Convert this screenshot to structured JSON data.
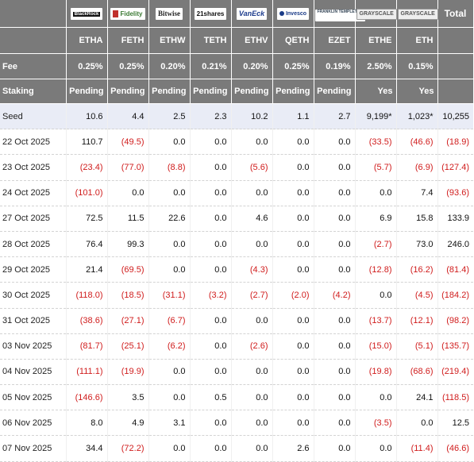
{
  "logos": [
    {
      "name": "BlackRock",
      "style": "blk"
    },
    {
      "name": "Fidelity",
      "style": "fid"
    },
    {
      "name": "Bitwise",
      "style": "btw"
    },
    {
      "name": "21shares",
      "style": "s21"
    },
    {
      "name": "VanEck",
      "style": "vek"
    },
    {
      "name": "Invesco",
      "style": "inv"
    },
    {
      "name": "FRANKLIN TEMPLETON",
      "style": "frk"
    },
    {
      "name": "GRAYSCALE",
      "style": "gs"
    },
    {
      "name": "GRAYSCALE",
      "style": "gs"
    }
  ],
  "total_label": "Total",
  "tickers": [
    "ETHA",
    "FETH",
    "ETHW",
    "TETH",
    "ETHV",
    "QETH",
    "EZET",
    "ETHE",
    "ETH"
  ],
  "fee_label": "Fee",
  "fees": [
    "0.25%",
    "0.25%",
    "0.20%",
    "0.21%",
    "0.20%",
    "0.25%",
    "0.19%",
    "2.50%",
    "0.15%"
  ],
  "staking_label": "Staking",
  "staking": [
    "Pending",
    "Pending",
    "Pending",
    "Pending",
    "Pending",
    "Pending",
    "Pending",
    "Yes",
    "Yes"
  ],
  "rows": [
    {
      "label": "Seed",
      "cells": [
        "10.6",
        "4.4",
        "2.5",
        "2.3",
        "10.2",
        "1.1",
        "2.7",
        "9,199*",
        "1,023*",
        "10,255"
      ]
    },
    {
      "label": "22 Oct 2025",
      "cells": [
        "110.7",
        "(49.5)",
        "0.0",
        "0.0",
        "0.0",
        "0.0",
        "0.0",
        "(33.5)",
        "(46.6)",
        "(18.9)"
      ]
    },
    {
      "label": "23 Oct 2025",
      "cells": [
        "(23.4)",
        "(77.0)",
        "(8.8)",
        "0.0",
        "(5.6)",
        "0.0",
        "0.0",
        "(5.7)",
        "(6.9)",
        "(127.4)"
      ]
    },
    {
      "label": "24 Oct 2025",
      "cells": [
        "(101.0)",
        "0.0",
        "0.0",
        "0.0",
        "0.0",
        "0.0",
        "0.0",
        "0.0",
        "7.4",
        "(93.6)"
      ]
    },
    {
      "label": "27 Oct 2025",
      "cells": [
        "72.5",
        "11.5",
        "22.6",
        "0.0",
        "4.6",
        "0.0",
        "0.0",
        "6.9",
        "15.8",
        "133.9"
      ]
    },
    {
      "label": "28 Oct 2025",
      "cells": [
        "76.4",
        "99.3",
        "0.0",
        "0.0",
        "0.0",
        "0.0",
        "0.0",
        "(2.7)",
        "73.0",
        "246.0"
      ]
    },
    {
      "label": "29 Oct 2025",
      "cells": [
        "21.4",
        "(69.5)",
        "0.0",
        "0.0",
        "(4.3)",
        "0.0",
        "0.0",
        "(12.8)",
        "(16.2)",
        "(81.4)"
      ]
    },
    {
      "label": "30 Oct 2025",
      "cells": [
        "(118.0)",
        "(18.5)",
        "(31.1)",
        "(3.2)",
        "(2.7)",
        "(2.0)",
        "(4.2)",
        "0.0",
        "(4.5)",
        "(184.2)"
      ]
    },
    {
      "label": "31 Oct 2025",
      "cells": [
        "(38.6)",
        "(27.1)",
        "(6.7)",
        "0.0",
        "0.0",
        "0.0",
        "0.0",
        "(13.7)",
        "(12.1)",
        "(98.2)"
      ]
    },
    {
      "label": "03 Nov 2025",
      "cells": [
        "(81.7)",
        "(25.1)",
        "(6.2)",
        "0.0",
        "(2.6)",
        "0.0",
        "0.0",
        "(15.0)",
        "(5.1)",
        "(135.7)"
      ]
    },
    {
      "label": "04 Nov 2025",
      "cells": [
        "(111.1)",
        "(19.9)",
        "0.0",
        "0.0",
        "0.0",
        "0.0",
        "0.0",
        "(19.8)",
        "(68.6)",
        "(219.4)"
      ]
    },
    {
      "label": "05 Nov 2025",
      "cells": [
        "(146.6)",
        "3.5",
        "0.0",
        "0.5",
        "0.0",
        "0.0",
        "0.0",
        "0.0",
        "24.1",
        "(118.5)"
      ]
    },
    {
      "label": "06 Nov 2025",
      "cells": [
        "8.0",
        "4.9",
        "3.1",
        "0.0",
        "0.0",
        "0.0",
        "0.0",
        "(3.5)",
        "0.0",
        "12.5"
      ]
    },
    {
      "label": "07 Nov 2025",
      "cells": [
        "34.4",
        "(72.2)",
        "0.0",
        "0.0",
        "0.0",
        "2.6",
        "0.0",
        "0.0",
        "(11.4)",
        "(46.6)"
      ]
    }
  ],
  "colors": {
    "header_bg": "#7a7a7a",
    "negative": "#d01c1c",
    "seed_bg": "#e9ecf6"
  }
}
